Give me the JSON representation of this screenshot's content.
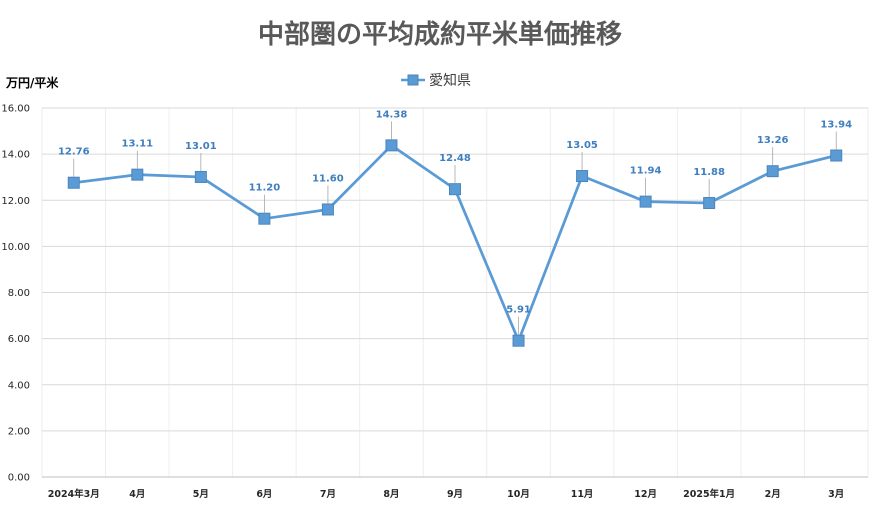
{
  "chart_data": {
    "type": "line",
    "title": "中部圏の平均成約平米単価推移",
    "ylabel": "万円/平米",
    "xlabel": "",
    "categories": [
      "2024年3月",
      "4月",
      "5月",
      "6月",
      "7月",
      "8月",
      "9月",
      "10月",
      "11月",
      "12月",
      "2025年1月",
      "2月",
      "3月"
    ],
    "series": [
      {
        "name": "愛知県",
        "values": [
          12.76,
          13.11,
          13.01,
          11.2,
          11.6,
          14.38,
          12.48,
          5.91,
          13.05,
          11.94,
          11.88,
          13.26,
          13.94
        ],
        "labels": [
          "12.76",
          "13.11",
          "13.01",
          "11.20",
          "11.60",
          "14.38",
          "12.48",
          "5.91",
          "13.05",
          "11.94",
          "11.88",
          "13.26",
          "13.94"
        ],
        "color": "#5b9bd5",
        "marker": "square"
      }
    ],
    "ylim": [
      0,
      16
    ],
    "yticks": [
      "0.00",
      "2.00",
      "4.00",
      "6.00",
      "8.00",
      "10.00",
      "12.00",
      "14.00",
      "16.00"
    ],
    "grid": true,
    "legend": "top-center",
    "data_labels": true
  },
  "colors": {
    "series": "#5b9bd5",
    "label_text": "#3f7fbf",
    "grid": "#d9d9d9",
    "grid_minor": "#eeeeee",
    "title": "#595959"
  }
}
